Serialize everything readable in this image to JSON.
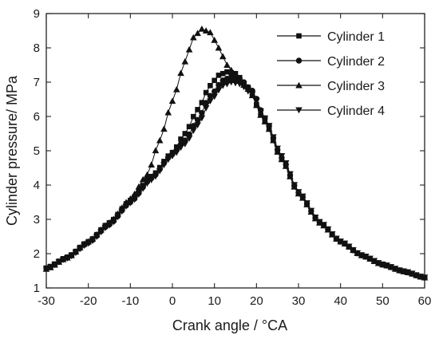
{
  "chart_data": {
    "type": "line",
    "xlabel": "Crank angle / °CA",
    "ylabel": "Cylinder pressure/ MPa",
    "xlim": [
      -30,
      60
    ],
    "ylim": [
      1,
      9
    ],
    "xticks": [
      -30,
      -20,
      -10,
      0,
      10,
      20,
      30,
      40,
      50,
      60
    ],
    "yticks": [
      1,
      2,
      3,
      4,
      5,
      6,
      7,
      8,
      9
    ],
    "grid": false,
    "legend_position": "top-right",
    "marker_step": 1,
    "series": [
      {
        "name": "Cylinder 1",
        "marker": "square",
        "x": [
          -30,
          -25,
          -20,
          -15,
          -10,
          -5,
          0,
          3,
          6,
          9,
          11,
          13,
          15,
          18,
          22,
          26,
          30,
          35,
          40,
          45,
          50,
          55,
          60
        ],
        "y": [
          1.58,
          1.9,
          2.35,
          2.9,
          3.55,
          4.25,
          4.95,
          5.5,
          6.2,
          6.9,
          7.2,
          7.3,
          7.25,
          6.85,
          5.85,
          4.75,
          3.75,
          2.9,
          2.35,
          1.95,
          1.68,
          1.48,
          1.3
        ]
      },
      {
        "name": "Cylinder 2",
        "marker": "circle",
        "x": [
          -30,
          -25,
          -20,
          -15,
          -10,
          -5,
          0,
          3,
          6,
          9,
          12,
          14,
          16,
          19,
          22,
          26,
          30,
          35,
          40,
          45,
          50,
          55,
          60
        ],
        "y": [
          1.57,
          1.88,
          2.32,
          2.85,
          3.5,
          4.2,
          4.9,
          5.3,
          5.9,
          6.6,
          7.05,
          7.15,
          7.1,
          6.75,
          5.95,
          4.8,
          3.78,
          2.92,
          2.35,
          1.95,
          1.68,
          1.48,
          1.3
        ]
      },
      {
        "name": "Cylinder 3",
        "marker": "triangle-up",
        "x": [
          -30,
          -25,
          -20,
          -15,
          -10,
          -6,
          -3,
          0,
          3,
          5,
          7,
          9,
          11,
          13,
          15,
          18,
          22,
          26,
          30,
          35,
          40,
          45,
          50,
          55,
          60
        ],
        "y": [
          1.55,
          1.88,
          2.35,
          2.9,
          3.6,
          4.3,
          5.3,
          6.45,
          7.6,
          8.3,
          8.55,
          8.45,
          8.0,
          7.5,
          7.2,
          6.8,
          5.85,
          4.75,
          3.75,
          2.9,
          2.35,
          1.95,
          1.68,
          1.48,
          1.3
        ]
      },
      {
        "name": "Cylinder 4",
        "marker": "triangle-down",
        "x": [
          -30,
          -25,
          -20,
          -15,
          -10,
          -5,
          0,
          3,
          6,
          9,
          12,
          14,
          16,
          19,
          22,
          26,
          30,
          35,
          40,
          45,
          50,
          55,
          60
        ],
        "y": [
          1.56,
          1.87,
          2.3,
          2.83,
          3.48,
          4.15,
          4.85,
          5.2,
          5.75,
          6.45,
          6.9,
          7.0,
          6.95,
          6.65,
          5.95,
          4.85,
          3.8,
          2.93,
          2.36,
          1.96,
          1.69,
          1.49,
          1.31
        ]
      }
    ]
  }
}
